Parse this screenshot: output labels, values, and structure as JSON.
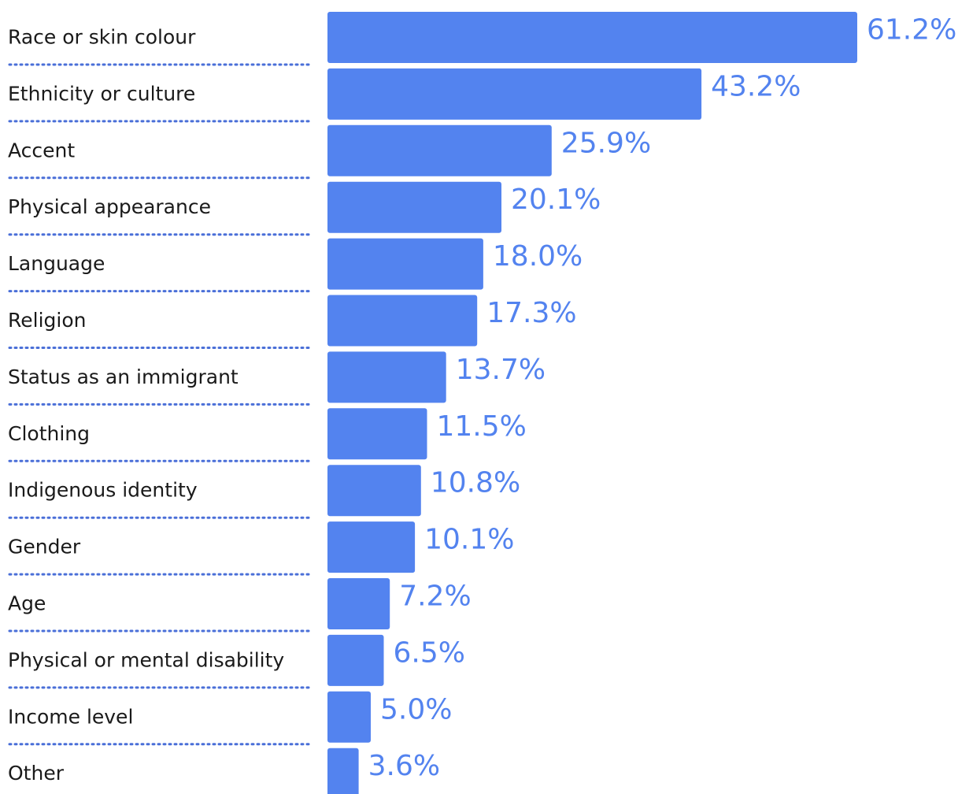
{
  "chart_data": {
    "type": "bar",
    "orientation": "horizontal",
    "categories": [
      "Race or skin colour",
      "Ethnicity or culture",
      "Accent",
      "Physical appearance",
      "Language",
      "Religion",
      "Status as an immigrant",
      "Clothing",
      "Indigenous identity",
      "Gender",
      "Age",
      "Physical or mental disability",
      "Income level",
      "Other"
    ],
    "values": [
      61.2,
      43.2,
      25.9,
      20.1,
      18.0,
      17.3,
      13.7,
      11.5,
      10.8,
      10.1,
      7.2,
      6.5,
      5.0,
      3.6
    ],
    "value_labels": [
      "61.2%",
      "43.2%",
      "25.9%",
      "20.1%",
      "18.0%",
      "17.3%",
      "13.7%",
      "11.5%",
      "10.8%",
      "10.1%",
      "7.2%",
      "6.5%",
      "5.0%",
      "3.6%"
    ],
    "title": "",
    "xlabel": "",
    "ylabel": "",
    "xlim": [
      0,
      61.2
    ],
    "grid": false,
    "legend": "none",
    "colors": {
      "bar": "#5383ef",
      "value_label": "#5383ef",
      "category_label": "#1a1a1a",
      "separator": "#4a6fd8"
    }
  }
}
